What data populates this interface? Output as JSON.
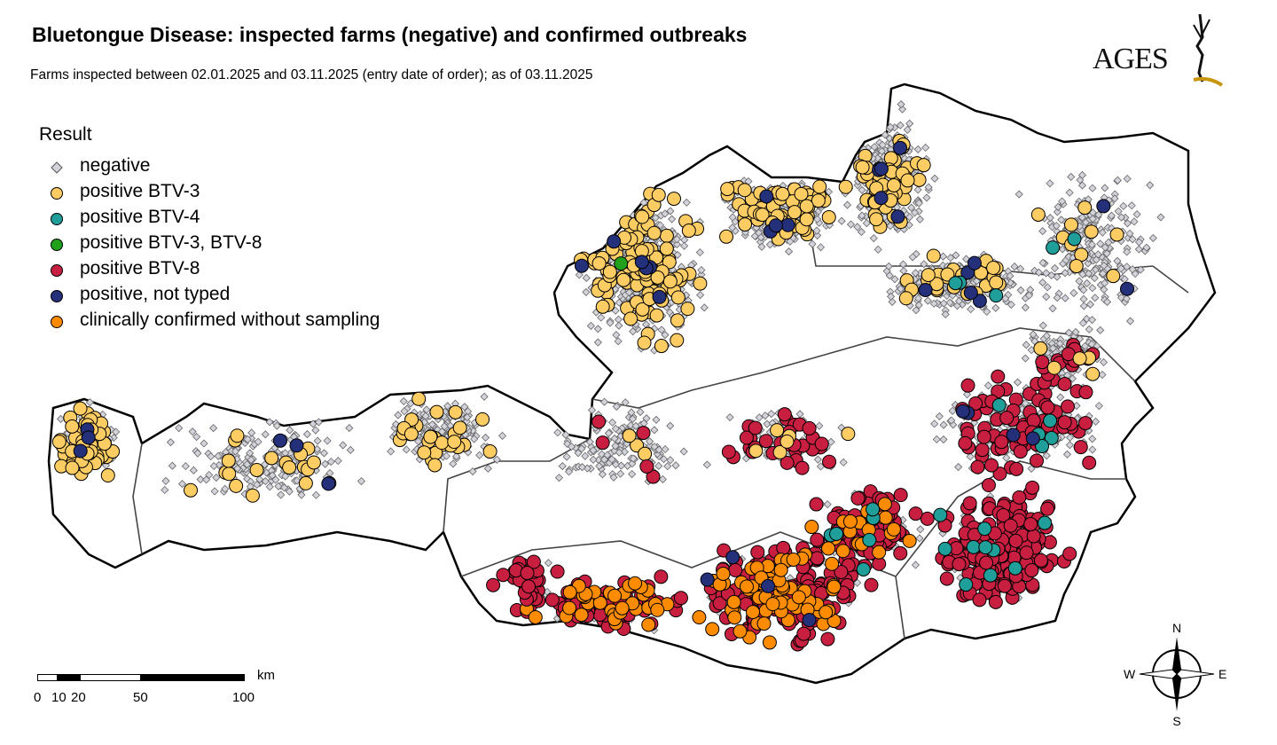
{
  "title": "Bluetongue Disease: inspected farms (negative) and confirmed outbreaks",
  "subtitle": "Farms inspected between 02.01.2025 and 03.11.2025 (entry date of order); as of 03.11.2025",
  "logo": {
    "text": "AGES"
  },
  "legend": {
    "title": "Result",
    "items": [
      {
        "label": "negative",
        "shape": "diamond",
        "color": "#d3d3dc"
      },
      {
        "label": "positive BTV-3",
        "shape": "circle",
        "color": "#fdcd63"
      },
      {
        "label": "positive BTV-4",
        "shape": "circle",
        "color": "#1f9e9a"
      },
      {
        "label": "positive BTV-3, BTV-8",
        "shape": "circle",
        "color": "#21a01c"
      },
      {
        "label": "positive BTV-8",
        "shape": "circle",
        "color": "#c81e40"
      },
      {
        "label": "positive, not typed",
        "shape": "circle",
        "color": "#24307a"
      },
      {
        "label": "clinically confirmed without sampling",
        "shape": "circle",
        "color": "#ff8c00"
      }
    ]
  },
  "scale_bar": {
    "unit": "km",
    "labels": [
      "0",
      "10",
      "20",
      "50",
      "100"
    ]
  },
  "compass": {
    "n": "N",
    "s": "S",
    "e": "E",
    "w": "W"
  }
}
